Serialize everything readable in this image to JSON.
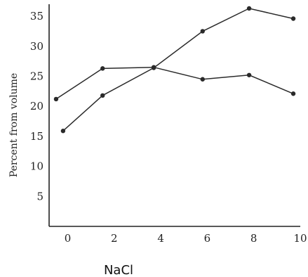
{
  "chart_data": {
    "type": "line",
    "title": "",
    "xlabel": "NaCl",
    "ylabel": "Percent from volume",
    "xlim": [
      -0.8,
      10
    ],
    "ylim": [
      0,
      37
    ],
    "xticks": [
      0,
      2,
      4,
      6,
      8,
      10
    ],
    "yticks": [
      5,
      10,
      15,
      20,
      25,
      30,
      35
    ],
    "grid": false,
    "legend": "none",
    "series": [
      {
        "x": [
          -0.5,
          1.5,
          3.7,
          5.8,
          7.8,
          9.7
        ],
        "y": [
          21.2,
          26.3,
          26.5,
          24.5,
          25.2,
          22.1
        ]
      },
      {
        "x": [
          -0.2,
          1.5,
          3.7,
          5.8,
          7.8,
          9.7
        ],
        "y": [
          15.9,
          21.8,
          26.4,
          32.5,
          36.3,
          34.6
        ]
      }
    ],
    "colors": {
      "line": "#2a2a2a",
      "text": "#222222"
    }
  }
}
